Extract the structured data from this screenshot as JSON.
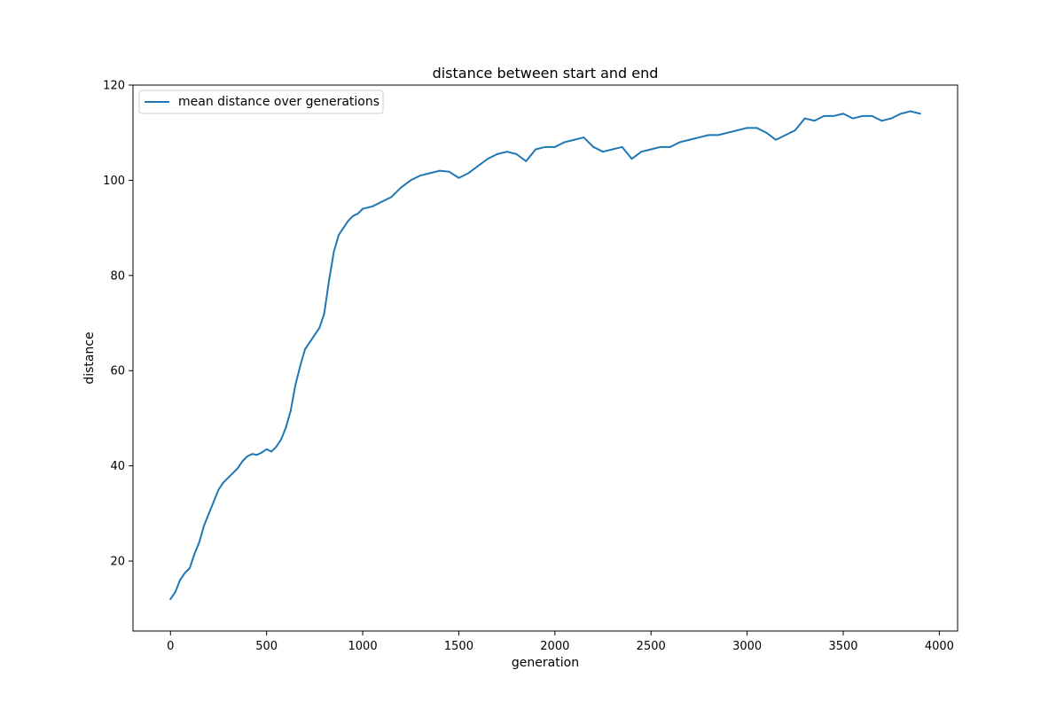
{
  "colors": {
    "series": "#1f77b4",
    "axes": "#000000",
    "background": "#ffffff",
    "legend_border": "#cccccc"
  },
  "chart_data": {
    "type": "line",
    "title": "distance between start and end",
    "xlabel": "generation",
    "ylabel": "distance",
    "xlim": [
      -195,
      4095
    ],
    "ylim": [
      5.3,
      120.0
    ],
    "xticks": [
      0,
      500,
      1000,
      1500,
      2000,
      2500,
      3000,
      3500,
      4000
    ],
    "xtick_labels": [
      "0",
      "500",
      "1000",
      "1500",
      "2000",
      "2500",
      "3000",
      "3500",
      "4000"
    ],
    "yticks": [
      20,
      40,
      60,
      80,
      100,
      120
    ],
    "ytick_labels": [
      "20",
      "40",
      "60",
      "80",
      "100",
      "120"
    ],
    "grid": false,
    "legend_position": "upper left",
    "series": [
      {
        "name": "mean distance over generations",
        "color": "#1f77b4",
        "x": [
          0,
          25,
          50,
          75,
          100,
          125,
          150,
          175,
          200,
          225,
          250,
          275,
          300,
          325,
          350,
          375,
          400,
          425,
          450,
          475,
          500,
          525,
          550,
          575,
          600,
          625,
          650,
          675,
          700,
          725,
          750,
          775,
          800,
          825,
          850,
          875,
          900,
          925,
          950,
          975,
          1000,
          1050,
          1100,
          1150,
          1200,
          1250,
          1300,
          1350,
          1400,
          1450,
          1500,
          1550,
          1600,
          1650,
          1700,
          1750,
          1800,
          1850,
          1900,
          1950,
          2000,
          2050,
          2100,
          2150,
          2200,
          2250,
          2300,
          2350,
          2400,
          2450,
          2500,
          2550,
          2600,
          2650,
          2700,
          2750,
          2800,
          2850,
          2900,
          2950,
          3000,
          3050,
          3100,
          3150,
          3200,
          3250,
          3300,
          3350,
          3400,
          3450,
          3500,
          3550,
          3600,
          3650,
          3700,
          3750,
          3800,
          3850,
          3900
        ],
        "y": [
          12.0,
          13.5,
          16.0,
          17.5,
          18.5,
          21.5,
          24.0,
          27.5,
          30.0,
          32.5,
          35.0,
          36.5,
          37.5,
          38.5,
          39.5,
          41.0,
          42.0,
          42.5,
          42.3,
          42.8,
          43.5,
          43.0,
          44.0,
          45.5,
          48.0,
          51.5,
          57.0,
          61.0,
          64.5,
          66.0,
          67.5,
          69.0,
          72.0,
          79.0,
          85.0,
          88.5,
          90.0,
          91.5,
          92.5,
          93.0,
          94.0,
          94.5,
          95.5,
          96.5,
          98.5,
          100.0,
          101.0,
          101.5,
          102.0,
          101.8,
          100.5,
          101.5,
          103.0,
          104.5,
          105.5,
          106.0,
          105.5,
          104.0,
          106.5,
          107.0,
          107.0,
          108.0,
          108.5,
          109.0,
          107.0,
          106.0,
          106.5,
          107.0,
          104.5,
          106.0,
          106.5,
          107.0,
          107.0,
          108.0,
          108.5,
          109.0,
          109.5,
          109.5,
          110.0,
          110.5,
          111.0,
          111.0,
          110.0,
          108.5,
          109.5,
          110.5,
          113.0,
          112.5,
          113.5,
          113.5,
          114.0,
          113.0,
          113.5,
          113.5,
          112.5,
          113.0,
          114.0,
          114.5,
          114.0
        ]
      }
    ]
  }
}
